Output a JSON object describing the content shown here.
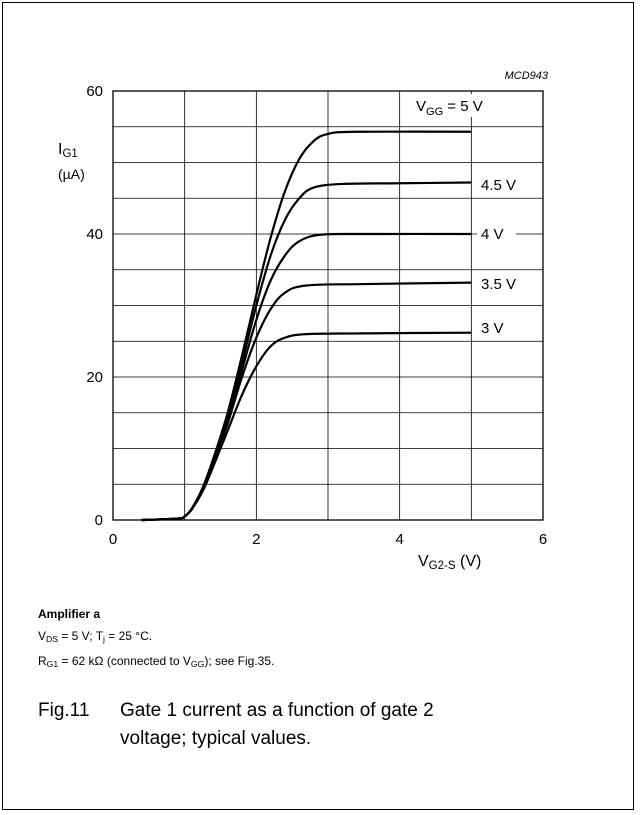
{
  "chart_data": {
    "type": "line",
    "figure_code": "MCD943",
    "y_label": {
      "main": "I",
      "sub": "G1",
      "unit": "(µA)"
    },
    "x_label": {
      "main": "V",
      "sub": "G2-S",
      "unit": "(V)"
    },
    "xlim": [
      0,
      6
    ],
    "ylim": [
      0,
      60
    ],
    "x_ticks": [
      "0",
      "2",
      "4",
      "6"
    ],
    "y_ticks": [
      "0",
      "20",
      "40",
      "60"
    ],
    "grid": true,
    "series": [
      {
        "name": "3 V",
        "points": [
          [
            0.4,
            0
          ],
          [
            0.9,
            0.2
          ],
          [
            1.0,
            0.5
          ],
          [
            1.1,
            1.5
          ],
          [
            1.25,
            4
          ],
          [
            1.4,
            7.5
          ],
          [
            1.6,
            12.5
          ],
          [
            1.8,
            17.5
          ],
          [
            2.0,
            21.5
          ],
          [
            2.2,
            24.3
          ],
          [
            2.4,
            25.5
          ],
          [
            2.7,
            26
          ],
          [
            3.5,
            26.1
          ],
          [
            5.0,
            26.2
          ]
        ]
      },
      {
        "name": "3.5 V",
        "points": [
          [
            0.4,
            0
          ],
          [
            0.9,
            0.2
          ],
          [
            1.0,
            0.5
          ],
          [
            1.1,
            1.5
          ],
          [
            1.25,
            4.2
          ],
          [
            1.4,
            8
          ],
          [
            1.6,
            13.5
          ],
          [
            1.8,
            20
          ],
          [
            2.0,
            25.5
          ],
          [
            2.2,
            29.5
          ],
          [
            2.4,
            31.8
          ],
          [
            2.7,
            32.8
          ],
          [
            3.5,
            33.0
          ],
          [
            5.0,
            33.2
          ]
        ]
      },
      {
        "name": "4 V",
        "points": [
          [
            0.4,
            0
          ],
          [
            0.9,
            0.2
          ],
          [
            1.0,
            0.5
          ],
          [
            1.1,
            1.6
          ],
          [
            1.25,
            4.3
          ],
          [
            1.4,
            8.2
          ],
          [
            1.6,
            14
          ],
          [
            1.8,
            21
          ],
          [
            2.0,
            28
          ],
          [
            2.2,
            33.5
          ],
          [
            2.4,
            37
          ],
          [
            2.6,
            39
          ],
          [
            2.9,
            39.9
          ],
          [
            3.5,
            40
          ],
          [
            5.0,
            40
          ]
        ]
      },
      {
        "name": "4.5 V",
        "points": [
          [
            0.4,
            0
          ],
          [
            0.9,
            0.2
          ],
          [
            1.0,
            0.5
          ],
          [
            1.1,
            1.6
          ],
          [
            1.25,
            4.4
          ],
          [
            1.4,
            8.4
          ],
          [
            1.6,
            14.5
          ],
          [
            1.8,
            22
          ],
          [
            2.0,
            30
          ],
          [
            2.2,
            37
          ],
          [
            2.4,
            42
          ],
          [
            2.6,
            45
          ],
          [
            2.8,
            46.5
          ],
          [
            3.2,
            47
          ],
          [
            4.0,
            47.1
          ],
          [
            5.0,
            47.2
          ]
        ]
      },
      {
        "name": "5 V",
        "points": [
          [
            0.4,
            0
          ],
          [
            0.9,
            0.2
          ],
          [
            1.0,
            0.5
          ],
          [
            1.1,
            1.6
          ],
          [
            1.25,
            4.5
          ],
          [
            1.4,
            8.6
          ],
          [
            1.6,
            15
          ],
          [
            1.8,
            23
          ],
          [
            2.0,
            31.5
          ],
          [
            2.2,
            39.5
          ],
          [
            2.4,
            46
          ],
          [
            2.6,
            50.5
          ],
          [
            2.8,
            53
          ],
          [
            3.0,
            54
          ],
          [
            3.4,
            54.3
          ],
          [
            5.0,
            54.3
          ]
        ]
      }
    ],
    "series_labels": [
      {
        "text": "V",
        "sub": "GG",
        "after": " = 5 V"
      },
      {
        "text": "4.5 V"
      },
      {
        "text": "4 V"
      },
      {
        "text": "3.5 V"
      },
      {
        "text": "3 V"
      }
    ]
  },
  "caption": {
    "title": "Amplifier a",
    "line1_parts": [
      "V",
      "DS",
      " = 5 V; T",
      "j",
      " = 25 °C."
    ],
    "line2_parts": [
      "R",
      "G1",
      " = 62 kΩ (connected to V",
      "GG",
      "); see Fig.35."
    ]
  },
  "figure": {
    "number": "Fig.11",
    "text_line1": "Gate 1 current as a function of gate 2",
    "text_line2": "voltage; typical values."
  }
}
